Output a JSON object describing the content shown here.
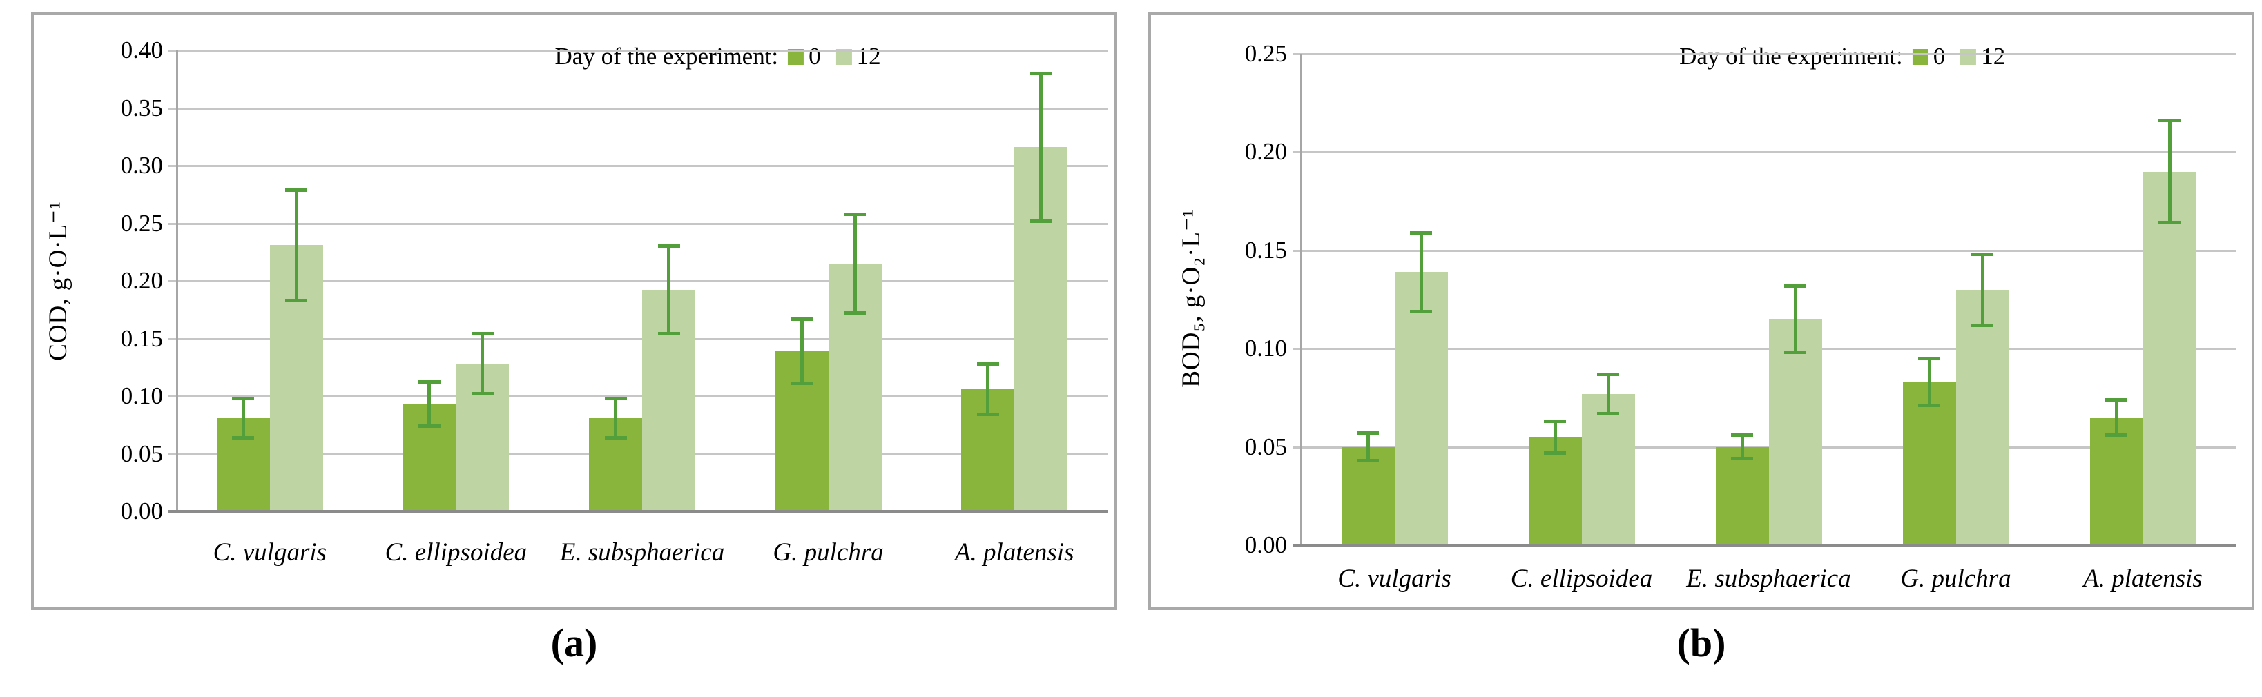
{
  "chart_data": [
    {
      "id": "a",
      "type": "bar",
      "caption": "(a)",
      "ylabel": "COD, g·O·L⁻¹",
      "xlabel": "",
      "ymin": 0,
      "ymax": 0.4,
      "ystep": 0.05,
      "grid": "horizontal",
      "legend": {
        "title": "Day of the experiment:",
        "position": "top-center"
      },
      "categories": [
        "C. vulgaris",
        "C. ellipsoidea",
        "E. subsphaerica",
        "G. pulchra",
        "A. platensis"
      ],
      "series": [
        {
          "name": "0",
          "color": "#8ab53c",
          "values": [
            0.081,
            0.093,
            0.081,
            0.139,
            0.106
          ],
          "errors": [
            0.017,
            0.019,
            0.017,
            0.028,
            0.022
          ]
        },
        {
          "name": "12",
          "color": "#bed4a3",
          "values": [
            0.231,
            0.128,
            0.192,
            0.215,
            0.316
          ],
          "errors": [
            0.048,
            0.026,
            0.038,
            0.043,
            0.064
          ]
        }
      ],
      "error_bar_color": "#529f3c"
    },
    {
      "id": "b",
      "type": "bar",
      "caption": "(b)",
      "ylabel": "BOD₅, g·O₂·L⁻¹",
      "xlabel": "",
      "ymin": 0,
      "ymax": 0.25,
      "ystep": 0.05,
      "grid": "horizontal",
      "legend": {
        "title": "Day of the experiment:",
        "position": "top-center"
      },
      "categories": [
        "C. vulgaris",
        "C. ellipsoidea",
        "E. subsphaerica",
        "G. pulchra",
        "A. platensis"
      ],
      "series": [
        {
          "name": "0",
          "color": "#8ab53c",
          "values": [
            0.05,
            0.055,
            0.05,
            0.083,
            0.065
          ],
          "errors": [
            0.007,
            0.008,
            0.006,
            0.012,
            0.009
          ]
        },
        {
          "name": "12",
          "color": "#bed4a3",
          "values": [
            0.139,
            0.077,
            0.115,
            0.13,
            0.19
          ],
          "errors": [
            0.02,
            0.01,
            0.017,
            0.018,
            0.026
          ]
        }
      ],
      "error_bar_color": "#529f3c"
    }
  ]
}
